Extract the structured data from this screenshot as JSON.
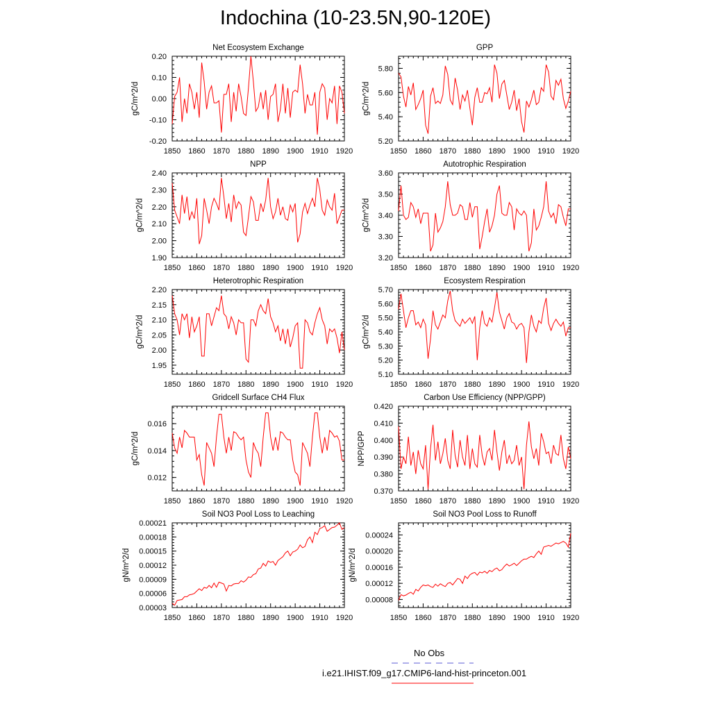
{
  "page": {
    "title": "Indochina (10-23.5N,90-120E)"
  },
  "colors": {
    "series": "#ff0000",
    "obs": "#5b5bd6",
    "axis": "#000000"
  },
  "legend": {
    "obs_label": "No Obs",
    "model_label": "i.e21.IHIST.f09_g17.CMIP6-land-hist-princeton.001"
  },
  "chart_data": [
    {
      "type": "line",
      "title": "Net Ecosystem Exchange",
      "ylabel": "gC/m^2/d",
      "xlim": [
        1850,
        1920
      ],
      "ylim": [
        -0.2,
        0.2
      ],
      "xticks": [
        1850,
        1860,
        1870,
        1880,
        1890,
        1900,
        1910,
        1920
      ],
      "xtick_labels": [
        "1850",
        "1860",
        "1870",
        "1880",
        "1890",
        "1900",
        "1910",
        "1920"
      ],
      "yticks": [
        -0.2,
        -0.1,
        0.0,
        0.1,
        0.2
      ],
      "ytick_labels": [
        "-0.20",
        "-0.10",
        "0.00",
        "0.10",
        "0.20"
      ],
      "x0": 1850,
      "values": [
        -0.12,
        0.01,
        0.03,
        0.1,
        -0.11,
        0.0,
        -0.07,
        0.07,
        0.03,
        -0.05,
        0.03,
        -0.09,
        0.17,
        0.08,
        -0.05,
        0.03,
        0.06,
        -0.02,
        -0.02,
        -0.01,
        -0.16,
        0.02,
        0.02,
        0.07,
        -0.11,
        0.03,
        -0.06,
        0.07,
        0.01,
        -0.07,
        -0.08,
        0.05,
        0.2,
        0.08,
        -0.06,
        -0.04,
        0.03,
        -0.05,
        0.04,
        -0.1,
        0.01,
        0.02,
        0.07,
        -0.11,
        -0.05,
        0.07,
        -0.07,
        0.05,
        -0.09,
        0.03,
        0.04,
        0.03,
        0.16,
        0.07,
        -0.07,
        0.02,
        -0.03,
        -0.03,
        0.03,
        -0.17,
        0.03,
        0.07,
        0.05,
        -0.1,
        0.0,
        -0.02,
        0.06,
        -0.12,
        0.06,
        0.03,
        -0.07
      ]
    },
    {
      "type": "line",
      "title": "GPP",
      "ylabel": "gC/m^2/d",
      "xlim": [
        1850,
        1920
      ],
      "ylim": [
        5.2,
        5.9
      ],
      "xticks": [
        1850,
        1860,
        1870,
        1880,
        1890,
        1900,
        1910,
        1920
      ],
      "xtick_labels": [
        "1850",
        "1860",
        "1870",
        "1880",
        "1890",
        "1900",
        "1910",
        "1920"
      ],
      "yticks": [
        5.2,
        5.4,
        5.6,
        5.8
      ],
      "ytick_labels": [
        "5.20",
        "5.40",
        "5.60",
        "5.80"
      ],
      "x0": 1850,
      "values": [
        5.76,
        5.73,
        5.57,
        5.48,
        5.65,
        5.58,
        5.68,
        5.46,
        5.5,
        5.55,
        5.62,
        5.33,
        5.26,
        5.57,
        5.64,
        5.51,
        5.53,
        5.51,
        5.58,
        5.82,
        5.75,
        5.54,
        5.5,
        5.72,
        5.62,
        5.46,
        5.58,
        5.53,
        5.62,
        5.47,
        5.33,
        5.56,
        5.64,
        5.52,
        5.52,
        5.6,
        5.59,
        5.64,
        5.52,
        5.83,
        5.76,
        5.55,
        5.67,
        5.7,
        5.58,
        5.46,
        5.52,
        5.62,
        5.45,
        5.55,
        5.36,
        5.27,
        5.53,
        5.48,
        5.54,
        5.62,
        5.5,
        5.52,
        5.64,
        5.61,
        5.83,
        5.77,
        5.57,
        5.54,
        5.7,
        5.66,
        5.71,
        5.55,
        5.47,
        5.53,
        5.61
      ]
    },
    {
      "type": "line",
      "title": "NPP",
      "ylabel": "gC/m^2/d",
      "xlim": [
        1850,
        1920
      ],
      "ylim": [
        1.9,
        2.4
      ],
      "xticks": [
        1850,
        1860,
        1870,
        1880,
        1890,
        1900,
        1910,
        1920
      ],
      "xtick_labels": [
        "1850",
        "1860",
        "1870",
        "1880",
        "1890",
        "1900",
        "1910",
        "1920"
      ],
      "yticks": [
        1.9,
        2.0,
        2.1,
        2.2,
        2.3,
        2.4
      ],
      "ytick_labels": [
        "1.90",
        "2.00",
        "2.10",
        "2.20",
        "2.30",
        "2.40"
      ],
      "x0": 1850,
      "values": [
        2.34,
        2.18,
        2.14,
        2.1,
        2.27,
        2.16,
        2.26,
        2.12,
        2.17,
        2.13,
        2.25,
        1.98,
        2.03,
        2.25,
        2.18,
        2.1,
        2.2,
        2.25,
        2.22,
        2.18,
        2.37,
        2.26,
        2.13,
        2.22,
        2.11,
        2.27,
        2.19,
        2.23,
        2.21,
        2.05,
        2.03,
        2.14,
        2.26,
        2.23,
        2.12,
        2.12,
        2.22,
        2.17,
        2.24,
        2.37,
        2.2,
        2.13,
        2.17,
        2.25,
        2.15,
        2.2,
        2.13,
        2.12,
        2.21,
        2.17,
        2.22,
        1.99,
        2.04,
        2.17,
        2.22,
        2.16,
        2.21,
        2.25,
        2.2,
        2.37,
        2.3,
        2.18,
        2.15,
        2.24,
        2.2,
        2.18,
        2.28,
        2.1,
        2.14,
        2.18,
        2.18
      ]
    },
    {
      "type": "line",
      "title": "Autotrophic Respiration",
      "ylabel": "gC/m^2/d",
      "xlim": [
        1850,
        1920
      ],
      "ylim": [
        3.2,
        3.6
      ],
      "xticks": [
        1850,
        1860,
        1870,
        1880,
        1890,
        1900,
        1910,
        1920
      ],
      "xtick_labels": [
        "1850",
        "1860",
        "1870",
        "1880",
        "1890",
        "1900",
        "1910",
        "1920"
      ],
      "yticks": [
        3.2,
        3.3,
        3.4,
        3.5,
        3.6
      ],
      "ytick_labels": [
        "3.20",
        "3.30",
        "3.40",
        "3.50",
        "3.60"
      ],
      "x0": 1850,
      "values": [
        3.42,
        3.54,
        3.4,
        3.38,
        3.39,
        3.46,
        3.44,
        3.39,
        3.43,
        3.36,
        3.41,
        3.41,
        3.41,
        3.23,
        3.26,
        3.41,
        3.32,
        3.34,
        3.37,
        3.44,
        3.56,
        3.45,
        3.4,
        3.4,
        3.41,
        3.45,
        3.44,
        3.38,
        3.38,
        3.46,
        3.39,
        3.44,
        3.44,
        3.24,
        3.3,
        3.37,
        3.43,
        3.32,
        3.35,
        3.4,
        3.5,
        3.54,
        3.41,
        3.4,
        3.4,
        3.46,
        3.44,
        3.33,
        3.43,
        3.41,
        3.4,
        3.42,
        3.4,
        3.23,
        3.27,
        3.43,
        3.33,
        3.35,
        3.39,
        3.44,
        3.56,
        3.42,
        3.39,
        3.41,
        3.36,
        3.45,
        3.44,
        3.39,
        3.35,
        3.43,
        3.43
      ]
    },
    {
      "type": "line",
      "title": "Heterotrophic Respiration",
      "ylabel": "gC/m^2/d",
      "xlim": [
        1850,
        1920
      ],
      "ylim": [
        1.92,
        2.2
      ],
      "xticks": [
        1850,
        1860,
        1870,
        1880,
        1890,
        1900,
        1910,
        1920
      ],
      "xtick_labels": [
        "1850",
        "1860",
        "1870",
        "1880",
        "1890",
        "1900",
        "1910",
        "1920"
      ],
      "yticks": [
        1.95,
        2.0,
        2.05,
        2.1,
        2.15,
        2.2
      ],
      "ytick_labels": [
        "1.95",
        "2.00",
        "2.05",
        "2.10",
        "2.15",
        "2.20"
      ],
      "x0": 1850,
      "values": [
        2.18,
        2.12,
        2.1,
        2.05,
        2.12,
        2.1,
        2.12,
        2.04,
        2.11,
        2.06,
        2.08,
        2.11,
        1.98,
        1.98,
        2.12,
        2.12,
        2.08,
        2.11,
        2.14,
        2.13,
        2.18,
        2.12,
        2.11,
        2.07,
        2.11,
        2.09,
        2.05,
        2.1,
        2.09,
        2.09,
        1.97,
        1.96,
        2.1,
        2.1,
        2.08,
        2.13,
        2.15,
        2.13,
        2.12,
        2.17,
        2.11,
        2.09,
        2.06,
        2.08,
        2.03,
        2.07,
        2.02,
        2.07,
        2.01,
        2.04,
        2.08,
        2.09,
        1.94,
        1.94,
        2.1,
        2.09,
        2.06,
        2.05,
        2.09,
        2.12,
        2.14,
        2.1,
        2.08,
        2.02,
        2.07,
        2.06,
        2.07,
        2.04,
        1.99,
        2.06,
        2.0
      ]
    },
    {
      "type": "line",
      "title": "Ecosystem Respiration",
      "ylabel": "gC/m^2/d",
      "xlim": [
        1850,
        1920
      ],
      "ylim": [
        5.1,
        5.7
      ],
      "xticks": [
        1850,
        1860,
        1870,
        1880,
        1890,
        1900,
        1910,
        1920
      ],
      "xtick_labels": [
        "1850",
        "1860",
        "1870",
        "1880",
        "1890",
        "1900",
        "1910",
        "1920"
      ],
      "yticks": [
        5.1,
        5.2,
        5.3,
        5.4,
        5.5,
        5.6,
        5.7
      ],
      "ytick_labels": [
        "5.10",
        "5.20",
        "5.30",
        "5.40",
        "5.50",
        "5.60",
        "5.70"
      ],
      "x0": 1850,
      "values": [
        5.56,
        5.67,
        5.55,
        5.43,
        5.5,
        5.55,
        5.55,
        5.45,
        5.47,
        5.43,
        5.49,
        5.45,
        5.21,
        5.35,
        5.55,
        5.45,
        5.42,
        5.47,
        5.52,
        5.5,
        5.62,
        5.69,
        5.55,
        5.48,
        5.46,
        5.44,
        5.49,
        5.46,
        5.48,
        5.5,
        5.46,
        5.51,
        5.2,
        5.43,
        5.55,
        5.46,
        5.44,
        5.5,
        5.47,
        5.57,
        5.68,
        5.54,
        5.48,
        5.42,
        5.5,
        5.53,
        5.47,
        5.46,
        5.42,
        5.45,
        5.46,
        5.43,
        5.18,
        5.4,
        5.52,
        5.44,
        5.4,
        5.48,
        5.46,
        5.57,
        5.64,
        5.46,
        5.41,
        5.46,
        5.49,
        5.46,
        5.44,
        5.47,
        5.37,
        5.43,
        5.43
      ]
    },
    {
      "type": "line",
      "title": "Gridcell Surface CH4 Flux",
      "ylabel": "gC/m^2/d",
      "xlim": [
        1850,
        1920
      ],
      "ylim": [
        0.011,
        0.0173
      ],
      "xticks": [
        1850,
        1860,
        1870,
        1880,
        1890,
        1900,
        1910,
        1920
      ],
      "xtick_labels": [
        "1850",
        "1860",
        "1870",
        "1880",
        "1890",
        "1900",
        "1910",
        "1920"
      ],
      "yticks": [
        0.012,
        0.014,
        0.016
      ],
      "ytick_labels": [
        "0.012",
        "0.014",
        "0.016"
      ],
      "x0": 1850,
      "values": [
        0.0153,
        0.0142,
        0.0138,
        0.015,
        0.0142,
        0.0155,
        0.0153,
        0.015,
        0.015,
        0.015,
        0.0133,
        0.0137,
        0.0122,
        0.0114,
        0.0146,
        0.0142,
        0.0138,
        0.0128,
        0.015,
        0.0167,
        0.0167,
        0.015,
        0.0138,
        0.015,
        0.014,
        0.0154,
        0.0153,
        0.015,
        0.0148,
        0.015,
        0.0133,
        0.0124,
        0.012,
        0.0146,
        0.0141,
        0.0138,
        0.0128,
        0.015,
        0.0168,
        0.0168,
        0.015,
        0.014,
        0.015,
        0.014,
        0.0154,
        0.0153,
        0.015,
        0.0148,
        0.0148,
        0.0133,
        0.0124,
        0.0122,
        0.0114,
        0.0146,
        0.0142,
        0.0138,
        0.0128,
        0.015,
        0.0168,
        0.0168,
        0.015,
        0.0138,
        0.015,
        0.014,
        0.0155,
        0.0153,
        0.015,
        0.0151,
        0.0147,
        0.0133,
        0.0133
      ]
    },
    {
      "type": "line",
      "title": "Carbon Use Efficiency (NPP/GPP)",
      "ylabel": "NPP/GPP",
      "xlim": [
        1850,
        1920
      ],
      "ylim": [
        0.37,
        0.42
      ],
      "xticks": [
        1850,
        1860,
        1870,
        1880,
        1890,
        1900,
        1910,
        1920
      ],
      "xtick_labels": [
        "1850",
        "1860",
        "1870",
        "1880",
        "1890",
        "1900",
        "1910",
        "1920"
      ],
      "yticks": [
        0.37,
        0.38,
        0.39,
        0.4,
        0.41,
        0.42
      ],
      "ytick_labels": [
        "0.370",
        "0.380",
        "0.390",
        "0.400",
        "0.410",
        "0.420"
      ],
      "x0": 1850,
      "values": [
        0.408,
        0.383,
        0.39,
        0.386,
        0.402,
        0.385,
        0.393,
        0.38,
        0.394,
        0.386,
        0.383,
        0.397,
        0.371,
        0.395,
        0.409,
        0.388,
        0.399,
        0.386,
        0.392,
        0.401,
        0.388,
        0.383,
        0.406,
        0.391,
        0.384,
        0.4,
        0.39,
        0.385,
        0.403,
        0.383,
        0.395,
        0.386,
        0.384,
        0.403,
        0.391,
        0.385,
        0.393,
        0.395,
        0.388,
        0.406,
        0.393,
        0.382,
        0.393,
        0.4,
        0.386,
        0.391,
        0.386,
        0.388,
        0.397,
        0.385,
        0.39,
        0.371,
        0.397,
        0.411,
        0.396,
        0.389,
        0.395,
        0.385,
        0.404,
        0.399,
        0.392,
        0.393,
        0.386,
        0.397,
        0.392,
        0.391,
        0.403,
        0.389,
        0.383,
        0.396,
        0.389
      ]
    },
    {
      "type": "line",
      "title": "Soil NO3 Pool Loss to Leaching",
      "ylabel": "gN/m^2/d",
      "xlim": [
        1850,
        1920
      ],
      "ylim": [
        3e-05,
        0.00021
      ],
      "xticks": [
        1850,
        1860,
        1870,
        1880,
        1890,
        1900,
        1910,
        1920
      ],
      "xtick_labels": [
        "1850",
        "1860",
        "1870",
        "1880",
        "1890",
        "1900",
        "1910",
        "1920"
      ],
      "yticks": [
        3e-05,
        6e-05,
        9e-05,
        0.00012,
        0.00015,
        0.00018,
        0.00021
      ],
      "ytick_labels": [
        "0.00003",
        "0.00006",
        "0.00009",
        "0.00012",
        "0.00015",
        "0.00018",
        "0.00021"
      ],
      "x0": 1850,
      "values": [
        3.9e-05,
        3.5e-05,
        4.5e-05,
        4.6e-05,
        4.7e-05,
        5.3e-05,
        5.3e-05,
        5.7e-05,
        5.8e-05,
        6e-05,
        6.5e-05,
        7e-05,
        6.6e-05,
        7.3e-05,
        7.1e-05,
        7.7e-05,
        7.2e-05,
        8.2e-05,
        7.3e-05,
        8.4e-05,
        8.2e-05,
        8e-05,
        6.5e-05,
        7.7e-05,
        7.6e-05,
        8e-05,
        8.1e-05,
        8.1e-05,
        8.7e-05,
        8.4e-05,
        8.8e-05,
        9.5e-05,
        9.4e-05,
        0.0001,
        0.000102,
        0.000112,
        0.000114,
        0.000124,
        0.000118,
        0.000129,
        0.000126,
        0.000128,
        0.00012,
        0.00013,
        0.000134,
        0.000138,
        0.000146,
        0.00015,
        0.00014,
        0.000148,
        0.00015,
        0.000154,
        0.000163,
        0.000157,
        0.00016,
        0.000174,
        0.00018,
        0.000168,
        0.00019,
        0.000185,
        0.000198,
        0.0002,
        0.000204,
        0.000192,
        0.000196,
        0.0002,
        0.000201,
        0.000205,
        0.00021,
        0.000196,
        0.0002
      ]
    },
    {
      "type": "line",
      "title": "Soil NO3 Pool Loss to Runoff",
      "ylabel": "gN/m^2/d",
      "xlim": [
        1850,
        1920
      ],
      "ylim": [
        6e-05,
        0.00027
      ],
      "xticks": [
        1850,
        1860,
        1870,
        1880,
        1890,
        1900,
        1910,
        1920
      ],
      "xtick_labels": [
        "1850",
        "1860",
        "1870",
        "1880",
        "1890",
        "1900",
        "1910",
        "1920"
      ],
      "yticks": [
        8e-05,
        0.00012,
        0.00016,
        0.0002,
        0.00024
      ],
      "ytick_labels": [
        "0.00008",
        "0.00012",
        "0.00016",
        "0.00020",
        "0.00024"
      ],
      "x0": 1850,
      "values": [
        7.8e-05,
        9.2e-05,
        8.9e-05,
        9.1e-05,
        9.5e-05,
        9.8e-05,
        9.3e-05,
        0.000105,
        0.000101,
        0.00011,
        0.000116,
        0.000114,
        0.000116,
        0.000112,
        0.00011,
        0.000118,
        0.000113,
        0.000119,
        0.000115,
        0.000112,
        0.00012,
        0.000122,
        0.000116,
        0.000124,
        0.000132,
        0.00013,
        0.00012,
        0.000138,
        0.000132,
        0.000141,
        0.000145,
        0.000147,
        0.00014,
        0.000148,
        0.000146,
        0.00015,
        0.000145,
        0.000152,
        0.000149,
        0.000155,
        0.000158,
        0.000151,
        0.000154,
        0.000162,
        0.000168,
        0.000163,
        0.000166,
        0.00017,
        0.000164,
        0.00017,
        0.000176,
        0.00018,
        0.00018,
        0.000184,
        0.000187,
        0.000184,
        0.000193,
        0.0002,
        0.000192,
        0.00021,
        0.000212,
        0.000214,
        0.000212,
        0.000216,
        0.00022,
        0.000218,
        0.000221,
        0.000224,
        0.00022,
        0.00021,
        0.000244
      ]
    }
  ]
}
